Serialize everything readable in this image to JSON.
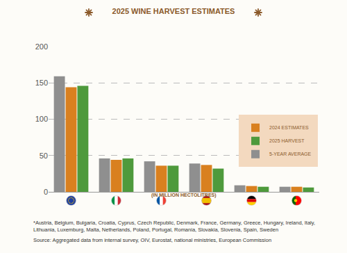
{
  "chart_data": {
    "type": "bar",
    "title": "2025 WINE HARVEST ESTIMATES",
    "subtitle": "(IN MILLION HECTOLITRES)",
    "categories": [
      null,
      null,
      null,
      null,
      null,
      null
    ],
    "series": [
      {
        "name": "2024 ESTIMATES",
        "color": "#d9801f",
        "values": [
          144,
          44,
          36,
          37,
          8,
          7
        ]
      },
      {
        "name": "2025 HARVEST",
        "color": "#4e9a3c",
        "values": [
          146,
          46,
          36,
          32,
          7,
          6
        ]
      },
      {
        "name": "5-YEAR AVERAGE",
        "color": "#8f8f8f",
        "values": [
          159,
          46,
          42,
          39,
          9,
          7
        ]
      }
    ],
    "ylim": [
      0,
      200
    ],
    "yticks": [
      0,
      50,
      100,
      150,
      200
    ],
    "grid": true,
    "legend": "right",
    "annotations": [
      "*Austria, Belgium, Bulgaria, Croatia, Cyprus, Czech Republic, Denmark, France, Germany, Greece, Hungary, Ireland, Italy, Lithuania, Luxemburg, Malta, Netherlands, Poland, Portugal, Romania, Slovakia, Slovenia, Spain, Sweden",
      "Source: Aggregated data from internal survey, OIV, Eurostat, national ministries, European Commission"
    ]
  }
}
